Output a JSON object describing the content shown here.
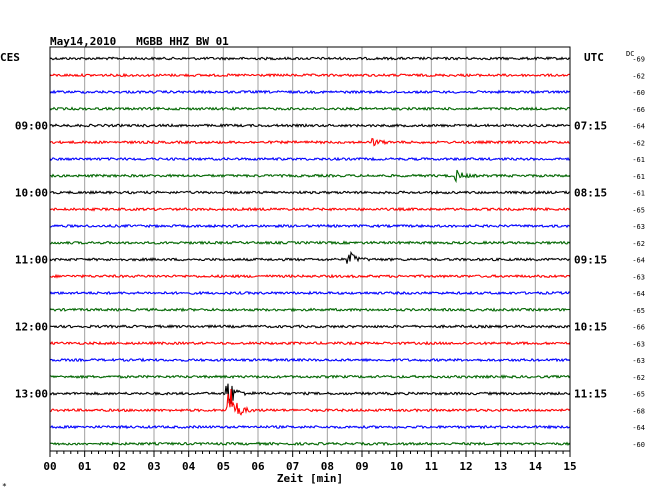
{
  "chart_data": {
    "type": "line",
    "title": "May14,2010   MGBB HHZ BW 01",
    "left_label": "CES",
    "right_label": "UTC",
    "dc_label": "DC",
    "xlabel": "Zeit [min]",
    "x_ticks": [
      "00",
      "01",
      "02",
      "03",
      "04",
      "05",
      "06",
      "07",
      "08",
      "09",
      "10",
      "11",
      "12",
      "13",
      "14",
      "15"
    ],
    "xlim": [
      0,
      15
    ],
    "grid": true,
    "trace_colors": [
      "#000000",
      "#ff0000",
      "#0000ff",
      "#006600"
    ],
    "left_times": [
      {
        "row": 4,
        "label": "09:00"
      },
      {
        "row": 8,
        "label": "10:00"
      },
      {
        "row": 12,
        "label": "11:00"
      },
      {
        "row": 16,
        "label": "12:00"
      },
      {
        "row": 20,
        "label": "13:00"
      }
    ],
    "right_times": [
      {
        "row": 4,
        "label": "07:15"
      },
      {
        "row": 8,
        "label": "08:15"
      },
      {
        "row": 12,
        "label": "09:15"
      },
      {
        "row": 16,
        "label": "10:15"
      },
      {
        "row": 20,
        "label": "11:15"
      }
    ],
    "dc_values": [
      "-69",
      "-62",
      "-60",
      "-66",
      "-64",
      "-62",
      "-61",
      "-61",
      "-61",
      "-65",
      "-63",
      "-62",
      "-64",
      "-63",
      "-64",
      "-65",
      "-66",
      "-63",
      "-63",
      "-62",
      "-65",
      "-68",
      "-64",
      "-60"
    ],
    "events": [
      {
        "row": 5,
        "minute": 9.3,
        "amplitude": 4
      },
      {
        "row": 7,
        "minute": 11.7,
        "amplitude": 6
      },
      {
        "row": 12,
        "minute": 8.6,
        "amplitude": 10
      },
      {
        "row": 20,
        "minute": 5.1,
        "amplitude": 22
      },
      {
        "row": 21,
        "minute": 5.15,
        "amplitude": 32
      }
    ],
    "corner_mark": "*"
  }
}
